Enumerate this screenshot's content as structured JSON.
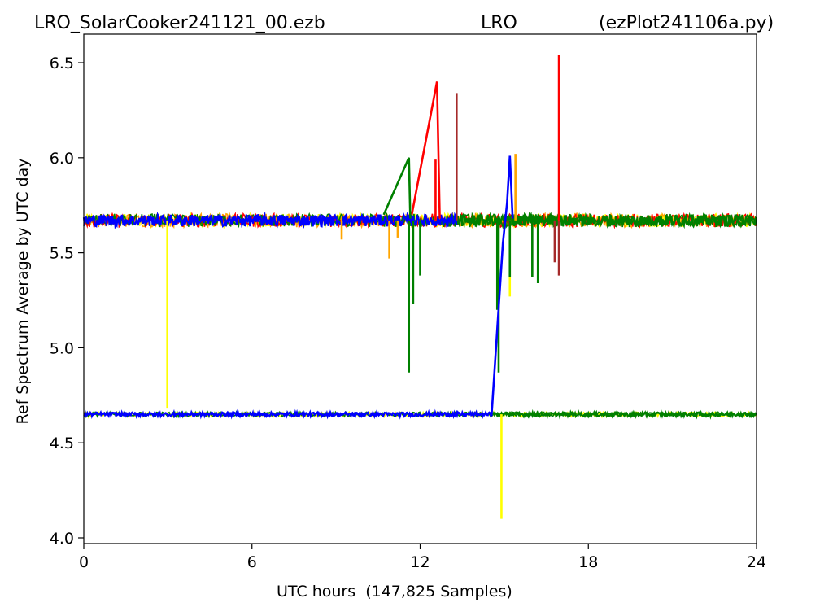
{
  "title": {
    "left": "LRO_SolarCooker241121_00.ezb",
    "center": "LRO",
    "right": "(ezPlot241106a.py)"
  },
  "chart_data": {
    "type": "line",
    "xlabel": "UTC hours  (147,825 Samples)",
    "ylabel": "Ref Spectrum Average by UTC day",
    "xlim": [
      0,
      24
    ],
    "ylim": [
      3.97,
      6.65
    ],
    "xticks": [
      0,
      6,
      12,
      18,
      24
    ],
    "yticks": [
      4.0,
      4.5,
      5.0,
      5.5,
      6.0,
      6.5
    ],
    "xtick_labels": [
      "0",
      "6",
      "12",
      "18",
      "24"
    ],
    "ytick_labels": [
      "4.0",
      "4.5",
      "5.0",
      "5.5",
      "6.0",
      "6.5"
    ],
    "grid": false,
    "legend": "none",
    "bands": {
      "upper_level": 5.67,
      "upper_noise": 0.035,
      "lower_level": 4.65,
      "lower_noise": 0.012
    },
    "series": [
      {
        "color": "#ffff00",
        "band_segments": [
          {
            "x0": 0,
            "x1": 24,
            "level": 5.67
          },
          {
            "x0": 0,
            "x1": 24,
            "level": 4.65
          }
        ],
        "spikes": [
          {
            "x": 2.98,
            "y": 4.68
          },
          {
            "x": 14.9,
            "y": 4.1
          },
          {
            "x": 15.2,
            "y": 5.27
          }
        ]
      },
      {
        "color": "#ffa500",
        "band_segments": [
          {
            "x0": 0,
            "x1": 24,
            "level": 5.67
          }
        ],
        "spikes": [
          {
            "x": 9.2,
            "y": 5.57
          },
          {
            "x": 10.9,
            "y": 5.47
          },
          {
            "x": 11.2,
            "y": 5.58
          },
          {
            "x": 15.4,
            "y": 6.02
          }
        ]
      },
      {
        "color": "#ff0000",
        "band_segments": [
          {
            "x0": 0,
            "x1": 24,
            "level": 5.67
          }
        ],
        "spikes": [
          {
            "x": 12.55,
            "y": 5.99
          },
          {
            "x": 16.95,
            "y": 6.54
          }
        ],
        "lines": [
          {
            "points": [
              [
                11.7,
                5.7
              ],
              [
                12.6,
                6.4
              ],
              [
                12.7,
                5.68
              ]
            ]
          }
        ]
      },
      {
        "color": "#a52a2a",
        "band_segments": [],
        "spikes": [
          {
            "x": 13.3,
            "y": 6.34
          },
          {
            "x": 16.8,
            "y": 5.45
          },
          {
            "x": 16.95,
            "y": 5.38
          }
        ]
      },
      {
        "color": "#008000",
        "band_segments": [
          {
            "x0": 0,
            "x1": 24,
            "level": 5.67
          },
          {
            "x0": 0,
            "x1": 24,
            "level": 4.65
          }
        ],
        "thick_segments": [
          {
            "x0": 13.0,
            "x1": 24.0,
            "level": 5.67
          },
          {
            "x0": 14.6,
            "x1": 24.0,
            "level": 4.65
          }
        ],
        "spikes": [
          {
            "x": 11.6,
            "y": 4.87
          },
          {
            "x": 11.75,
            "y": 5.23
          },
          {
            "x": 12.0,
            "y": 5.38
          },
          {
            "x": 14.75,
            "y": 5.2
          },
          {
            "x": 14.8,
            "y": 4.87
          },
          {
            "x": 15.2,
            "y": 5.37
          },
          {
            "x": 16.0,
            "y": 5.37
          },
          {
            "x": 16.2,
            "y": 5.34
          }
        ],
        "lines": [
          {
            "points": [
              [
                10.7,
                5.7
              ],
              [
                11.6,
                6.0
              ],
              [
                11.65,
                5.68
              ]
            ]
          }
        ]
      },
      {
        "color": "#0000ff",
        "band_segments": [],
        "thick_segments": [
          {
            "x0": 0,
            "x1": 13.3,
            "level": 5.67
          },
          {
            "x0": 0,
            "x1": 14.6,
            "level": 4.65
          }
        ],
        "spikes": [],
        "lines": [
          {
            "points": [
              [
                14.55,
                4.65
              ],
              [
                14.95,
                5.55
              ],
              [
                15.1,
                5.76
              ],
              [
                15.2,
                6.01
              ],
              [
                15.3,
                5.68
              ]
            ]
          }
        ]
      }
    ]
  }
}
